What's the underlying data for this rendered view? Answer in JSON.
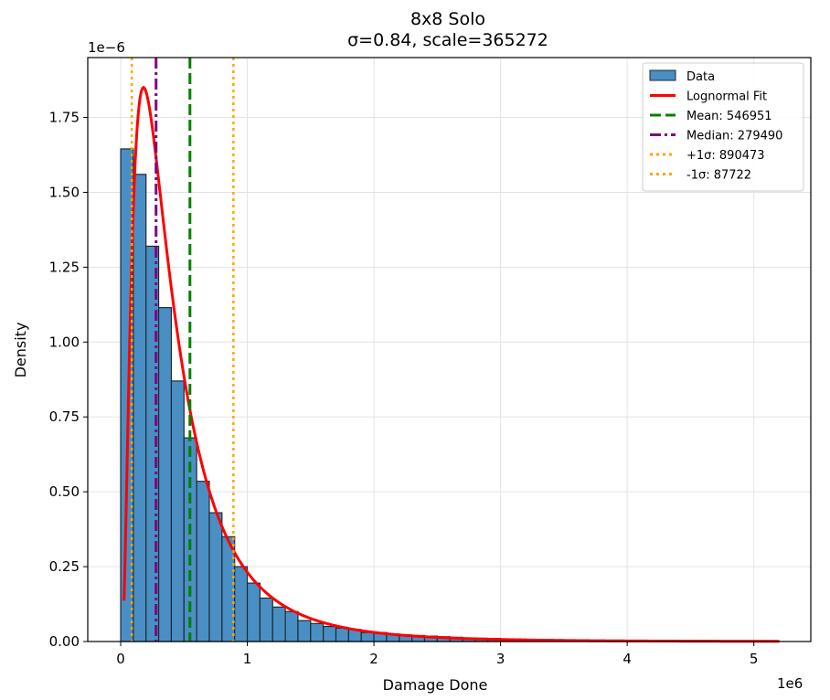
{
  "chart_data": {
    "type": "histogram",
    "title": "8x8 Solo",
    "subtitle": "σ=0.84, scale=365272",
    "xlabel": "Damage Done",
    "ylabel": "Density",
    "x_offset_label": "1e6",
    "y_offset_label": "1e−6",
    "xlim": [
      -0.26,
      5.45
    ],
    "ylim": [
      0,
      1.95
    ],
    "x_ticks": [
      0,
      1,
      2,
      3,
      4,
      5
    ],
    "x_tick_labels": [
      "0",
      "1",
      "2",
      "3",
      "4",
      "5"
    ],
    "y_ticks": [
      0,
      0.25,
      0.5,
      0.75,
      1.0,
      1.25,
      1.5,
      1.75
    ],
    "y_tick_labels": [
      "0.00",
      "0.25",
      "0.50",
      "0.75",
      "1.00",
      "1.25",
      "1.50",
      "1.75"
    ],
    "grid": true,
    "legend_location": "top-right",
    "bin_width": 0.1,
    "bins_start": 0,
    "bar_values": [
      1.645,
      1.56,
      1.32,
      1.115,
      0.87,
      0.68,
      0.535,
      0.43,
      0.35,
      0.25,
      0.195,
      0.145,
      0.115,
      0.1,
      0.07,
      0.06,
      0.05,
      0.045,
      0.04,
      0.03,
      0.03,
      0.025,
      0.022,
      0.02,
      0.018,
      0.016,
      0.014,
      0.012,
      0.011,
      0.01,
      0.009,
      0.008,
      0.007,
      0.006,
      0.006,
      0.005,
      0.005,
      0.004,
      0.004,
      0.003,
      0.003,
      0.003,
      0.002,
      0.002,
      0.002,
      0.002,
      0.002,
      0.001,
      0.001,
      0.001,
      0.001,
      0.001
    ],
    "fit": {
      "sigma": 0.84,
      "scale": 0.365272,
      "x_min": 0,
      "x_max": 5.2
    },
    "vlines": [
      {
        "label": "Mean: 546951",
        "x": 0.546951,
        "color": "#008000",
        "style": "dashed"
      },
      {
        "label": "Median: 279490",
        "x": 0.27949,
        "color": "#800080",
        "style": "dashdot"
      },
      {
        "label": "+1σ: 890473",
        "x": 0.890473,
        "color": "#FFA500",
        "style": "dotted"
      },
      {
        "label": "-1σ: 87722",
        "x": 0.087722,
        "color": "#FFA500",
        "style": "dotted"
      }
    ],
    "legend": [
      {
        "label": "Data",
        "kind": "patch",
        "color": "#4a8fc3"
      },
      {
        "label": "Lognormal Fit",
        "kind": "line",
        "color": "#ff0000"
      },
      {
        "label": "Mean: 546951",
        "kind": "dashed",
        "color": "#008000"
      },
      {
        "label": "Median: 279490",
        "kind": "dashdot",
        "color": "#800080"
      },
      {
        "label": "+1σ: 890473",
        "kind": "dotted",
        "color": "#FFA500"
      },
      {
        "label": "-1σ: 87722",
        "kind": "dotted",
        "color": "#FFA500"
      }
    ],
    "colors": {
      "bar": "#4a8fc3",
      "bar_edge": "#1f2a33",
      "fit": "#ff0000",
      "grid": "#e3e3e3"
    }
  }
}
